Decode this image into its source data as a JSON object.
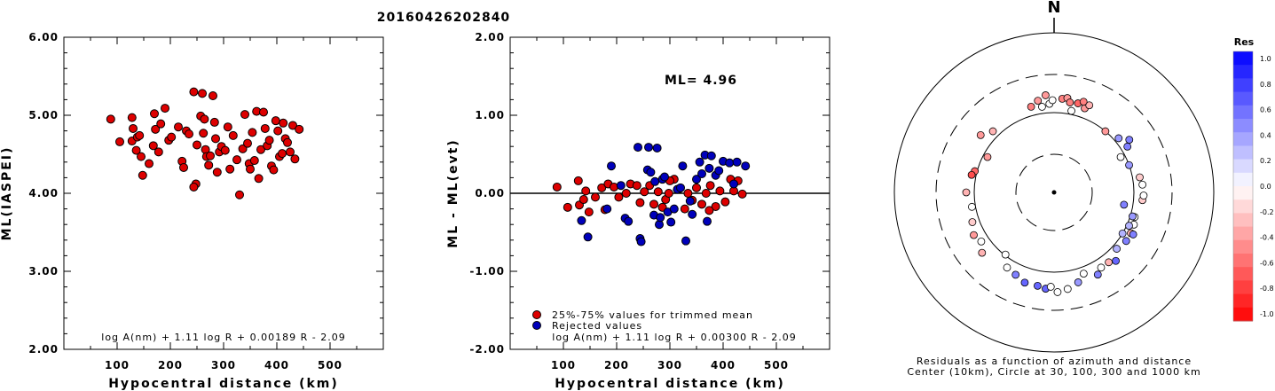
{
  "title": "20160426202840",
  "chart_data": [
    {
      "type": "scatter",
      "xlabel": "Hypocentral distance (km)",
      "ylabel": "ML(IASPEI)",
      "xlim": [
        0,
        600
      ],
      "ylim": [
        2.0,
        6.0
      ],
      "x_ticks": [
        "100",
        "200",
        "300",
        "400",
        "500"
      ],
      "y_ticks": [
        "2.00",
        "3.00",
        "4.00",
        "5.00",
        "6.00"
      ],
      "formula": "log A(nm) + 1.11 log R + 0.00189 R - 2.09",
      "series": [
        {
          "color": "#dd0000",
          "points": [
            [
              88,
              4.95
            ],
            [
              105,
              4.66
            ],
            [
              128,
              4.97
            ],
            [
              130,
              4.83
            ],
            [
              128,
              4.67
            ],
            [
              136,
              4.55
            ],
            [
              138,
              4.72
            ],
            [
              145,
              4.47
            ],
            [
              142,
              4.74
            ],
            [
              148,
              4.23
            ],
            [
              160,
              4.38
            ],
            [
              170,
              5.02
            ],
            [
              172,
              4.82
            ],
            [
              168,
              4.61
            ],
            [
              178,
              4.53
            ],
            [
              182,
              4.89
            ],
            [
              190,
              5.09
            ],
            [
              197,
              4.68
            ],
            [
              202,
              4.72
            ],
            [
              215,
              4.85
            ],
            [
              222,
              4.41
            ],
            [
              225,
              4.33
            ],
            [
              230,
              4.8
            ],
            [
              235,
              4.76
            ],
            [
              244,
              5.3
            ],
            [
              248,
              4.12
            ],
            [
              244,
              4.08
            ],
            [
              250,
              4.62
            ],
            [
              257,
              4.99
            ],
            [
              260,
              5.28
            ],
            [
              262,
              4.77
            ],
            [
              264,
              4.95
            ],
            [
              266,
              4.56
            ],
            [
              268,
              4.47
            ],
            [
              272,
              4.36
            ],
            [
              275,
              4.48
            ],
            [
              280,
              5.25
            ],
            [
              283,
              4.91
            ],
            [
              285,
              4.7
            ],
            [
              288,
              4.27
            ],
            [
              292,
              4.53
            ],
            [
              296,
              4.6
            ],
            [
              303,
              4.55
            ],
            [
              308,
              4.85
            ],
            [
              312,
              4.31
            ],
            [
              318,
              4.74
            ],
            [
              325,
              4.43
            ],
            [
              330,
              3.98
            ],
            [
              336,
              4.57
            ],
            [
              340,
              5.01
            ],
            [
              345,
              4.64
            ],
            [
              348,
              4.38
            ],
            [
              350,
              4.31
            ],
            [
              354,
              4.78
            ],
            [
              358,
              4.42
            ],
            [
              362,
              5.05
            ],
            [
              366,
              4.19
            ],
            [
              370,
              4.56
            ],
            [
              375,
              5.04
            ],
            [
              378,
              4.83
            ],
            [
              382,
              4.61
            ],
            [
              386,
              4.68
            ],
            [
              390,
              4.35
            ],
            [
              394,
              4.3
            ],
            [
              398,
              4.93
            ],
            [
              402,
              4.8
            ],
            [
              405,
              4.47
            ],
            [
              410,
              4.51
            ],
            [
              412,
              4.9
            ],
            [
              416,
              4.7
            ],
            [
              420,
              4.65
            ],
            [
              425,
              4.53
            ],
            [
              430,
              4.87
            ],
            [
              434,
              4.44
            ],
            [
              442,
              4.82
            ]
          ]
        }
      ]
    },
    {
      "type": "scatter",
      "xlabel": "Hypocentral distance (km)",
      "ylabel": "ML - ML(evt)",
      "xlim": [
        0,
        600
      ],
      "ylim": [
        -2.0,
        2.0
      ],
      "x_ticks": [
        "100",
        "200",
        "300",
        "400",
        "500"
      ],
      "y_ticks": [
        "-2.00",
        "-1.00",
        "0.00",
        "1.00",
        "2.00"
      ],
      "reference_line": 0.0,
      "annotation": "ML=  4.96",
      "formula": "log A(nm) + 1.11 log R + 0.00300 R - 2.09",
      "series": [
        {
          "name": "25%-75% values for trimmed mean",
          "color": "#dd0000",
          "points": [
            [
              88,
              0.08
            ],
            [
              108,
              -0.18
            ],
            [
              128,
              0.16
            ],
            [
              130,
              -0.15
            ],
            [
              138,
              -0.08
            ],
            [
              142,
              0.03
            ],
            [
              148,
              -0.24
            ],
            [
              160,
              -0.05
            ],
            [
              172,
              0.07
            ],
            [
              178,
              -0.21
            ],
            [
              184,
              0.12
            ],
            [
              195,
              0.08
            ],
            [
              204,
              -0.05
            ],
            [
              218,
              0.0
            ],
            [
              226,
              0.12
            ],
            [
              238,
              0.1
            ],
            [
              244,
              -0.12
            ],
            [
              252,
              0.02
            ],
            [
              262,
              0.1
            ],
            [
              270,
              -0.14
            ],
            [
              278,
              0.02
            ],
            [
              286,
              -0.18
            ],
            [
              292,
              -0.08
            ],
            [
              298,
              0.0
            ],
            [
              308,
              0.18
            ],
            [
              318,
              0.06
            ],
            [
              328,
              -0.2
            ],
            [
              334,
              0.0
            ],
            [
              342,
              -0.09
            ],
            [
              350,
              0.07
            ],
            [
              360,
              -0.14
            ],
            [
              368,
              0.0
            ],
            [
              376,
              0.1
            ],
            [
              386,
              -0.17
            ],
            [
              394,
              0.03
            ],
            [
              404,
              -0.11
            ],
            [
              414,
              0.18
            ],
            [
              420,
              0.03
            ],
            [
              428,
              0.16
            ],
            [
              436,
              -0.01
            ],
            [
              374,
              -0.22
            ],
            [
              300,
              0.16
            ]
          ]
        },
        {
          "name": "Rejected values",
          "color": "#0000bb",
          "points": [
            [
              134,
              -0.35
            ],
            [
              146,
              -0.56
            ],
            [
              182,
              -0.2
            ],
            [
              190,
              0.35
            ],
            [
              208,
              0.1
            ],
            [
              216,
              -0.32
            ],
            [
              222,
              -0.36
            ],
            [
              240,
              0.59
            ],
            [
              244,
              -0.58
            ],
            [
              246,
              -0.62
            ],
            [
              258,
              0.3
            ],
            [
              260,
              0.59
            ],
            [
              264,
              0.27
            ],
            [
              270,
              -0.28
            ],
            [
              272,
              0.15
            ],
            [
              276,
              0.58
            ],
            [
              280,
              -0.4
            ],
            [
              282,
              -0.31
            ],
            [
              286,
              0.18
            ],
            [
              290,
              0.21
            ],
            [
              296,
              -0.24
            ],
            [
              302,
              -0.37
            ],
            [
              308,
              -0.2
            ],
            [
              314,
              0.05
            ],
            [
              320,
              0.07
            ],
            [
              324,
              0.35
            ],
            [
              330,
              -0.61
            ],
            [
              338,
              -0.1
            ],
            [
              342,
              -0.27
            ],
            [
              350,
              0.18
            ],
            [
              356,
              0.4
            ],
            [
              360,
              0.25
            ],
            [
              366,
              0.49
            ],
            [
              370,
              -0.36
            ],
            [
              374,
              0.32
            ],
            [
              378,
              0.48
            ],
            [
              386,
              0.23
            ],
            [
              392,
              0.29
            ],
            [
              400,
              0.41
            ],
            [
              412,
              0.39
            ],
            [
              420,
              0.12
            ],
            [
              426,
              0.4
            ],
            [
              442,
              0.35
            ]
          ]
        }
      ]
    },
    {
      "type": "scatter",
      "title": "N",
      "caption_line1": "Residuals as a function of azimuth and distance",
      "caption_line2": "Center (10km), Circle at 30, 100, 300 and 1000 km",
      "colorbar_title": "Res",
      "colorbar_ticks": [
        "1.0",
        "0.8",
        "0.6",
        "0.4",
        "0.2",
        "0.0",
        "-0.2",
        "-0.4",
        "-0.6",
        "-0.8",
        "-1.0"
      ],
      "points_az_dist_res": [
        [
          -10,
          210,
          -0.4
        ],
        [
          -15,
          200,
          -0.5
        ],
        [
          -45,
          195,
          -0.3
        ],
        [
          -52,
          210,
          -0.4
        ],
        [
          -62,
          170,
          -0.4
        ],
        [
          -75,
          185,
          -0.6
        ],
        [
          -78,
          190,
          -0.7
        ],
        [
          -90,
          198,
          -0.3
        ],
        [
          -100,
          188,
          0.0
        ],
        [
          -110,
          196,
          -0.2
        ],
        [
          -118,
          205,
          -0.4
        ],
        [
          -124,
          198,
          0.0
        ],
        [
          -130,
          212,
          -0.3
        ],
        [
          -142,
          178,
          0.0
        ],
        [
          -148,
          200,
          0.0
        ],
        [
          -155,
          205,
          0.5
        ],
        [
          -162,
          214,
          0.6
        ],
        [
          -170,
          214,
          0.6
        ],
        [
          -175,
          218,
          0.6
        ],
        [
          -178,
          213,
          0.0
        ],
        [
          178,
          225,
          0.0
        ],
        [
          172,
          220,
          0.0
        ],
        [
          165,
          210,
          0.4
        ],
        [
          160,
          195,
          0.0
        ],
        [
          152,
          210,
          0.5
        ],
        [
          148,
          200,
          0.0
        ],
        [
          142,
          200,
          -0.3
        ],
        [
          138,
          208,
          0.6
        ],
        [
          132,
          190,
          0.3
        ],
        [
          124,
          196,
          0.5
        ],
        [
          118,
          196,
          -0.3
        ],
        [
          118,
          202,
          0.5
        ],
        [
          112,
          194,
          0.0
        ],
        [
          107,
          190,
          0.0
        ],
        [
          95,
          200,
          -0.2
        ],
        [
          92,
          202,
          0.0
        ],
        [
          85,
          200,
          0.0
        ],
        [
          80,
          196,
          -0.2
        ],
        [
          70,
          180,
          0.4
        ],
        [
          62,
          170,
          0.0
        ],
        [
          58,
          195,
          0.5
        ],
        [
          55,
          207,
          0.5
        ],
        [
          50,
          190,
          0.4
        ],
        [
          40,
          180,
          -0.4
        ],
        [
          20,
          202,
          -0.4
        ],
        [
          15,
          208,
          -0.6
        ],
        [
          12,
          188,
          0.0
        ],
        [
          22,
          212,
          -0.3
        ],
        [
          5,
          212,
          -0.5
        ],
        [
          8,
          215,
          -0.4
        ],
        [
          18,
          215,
          -0.5
        ],
        [
          10,
          206,
          -0.5
        ],
        [
          -5,
          220,
          -0.4
        ],
        [
          -3,
          200,
          0.0
        ],
        [
          -8,
          195,
          0.0
        ],
        [
          -1,
          208,
          0.0
        ],
        [
          100,
          160,
          0.5
        ],
        [
          107,
          185,
          0.4
        ],
        [
          114,
          185,
          0.3
        ],
        [
          121,
          180,
          0.3
        ]
      ]
    }
  ]
}
